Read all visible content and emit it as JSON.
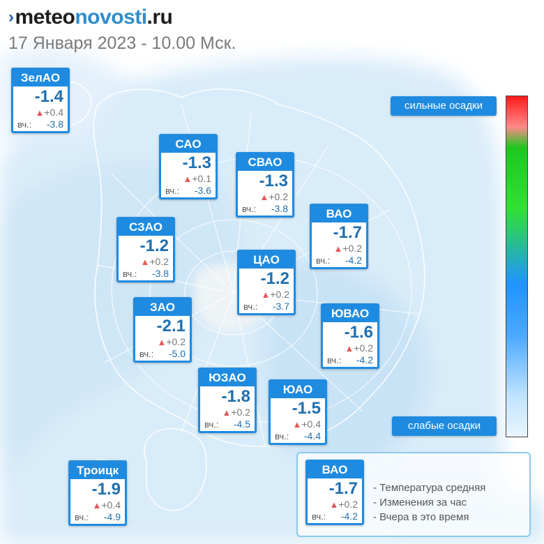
{
  "header": {
    "logo_mark": "›",
    "logo_part1": "meteo",
    "logo_part2": "novosti",
    "logo_part3": ".ru",
    "date": "17 Января 2023 - 10.00 Мск."
  },
  "labels": {
    "yesterday_prefix": "вч.:",
    "change_icon": "▲"
  },
  "colors": {
    "accent": "#1f8be0",
    "temp": "#1f6fae",
    "up_triangle": "#e2595a"
  },
  "districts": [
    {
      "name": "ЗелАО",
      "temp": "-1.4",
      "change": "+0.4",
      "yesterday": "-3.8"
    },
    {
      "name": "САО",
      "temp": "-1.3",
      "change": "+0.1",
      "yesterday": "-3.6"
    },
    {
      "name": "СВАО",
      "temp": "-1.3",
      "change": "+0.2",
      "yesterday": "-3.8"
    },
    {
      "name": "ВАО",
      "temp": "-1.7",
      "change": "+0.2",
      "yesterday": "-4.2"
    },
    {
      "name": "СЗАО",
      "temp": "-1.2",
      "change": "+0.2",
      "yesterday": "-3.8"
    },
    {
      "name": "ЦАО",
      "temp": "-1.2",
      "change": "+0.2",
      "yesterday": "-3.7"
    },
    {
      "name": "ЗАО",
      "temp": "-2.1",
      "change": "+0.2",
      "yesterday": "-5.0"
    },
    {
      "name": "ЮВАО",
      "temp": "-1.6",
      "change": "+0.2",
      "yesterday": "-4.2"
    },
    {
      "name": "ЮЗАО",
      "temp": "-1.8",
      "change": "+0.2",
      "yesterday": "-4.5"
    },
    {
      "name": "ЮАО",
      "temp": "-1.5",
      "change": "+0.4",
      "yesterday": "-4.4"
    },
    {
      "name": "Троицк",
      "temp": "-1.9",
      "change": "+0.4",
      "yesterday": "-4.9"
    }
  ],
  "precip_scale": {
    "top_label": "сильные осадки",
    "bottom_label": "слабые осадки"
  },
  "legend": {
    "example": {
      "name": "ВАО",
      "temp": "-1.7",
      "change": "+0.2",
      "yesterday": "-4.2"
    },
    "lines": [
      "- Температура средняя",
      "- Изменения за час",
      "- Вчера в это время"
    ]
  }
}
